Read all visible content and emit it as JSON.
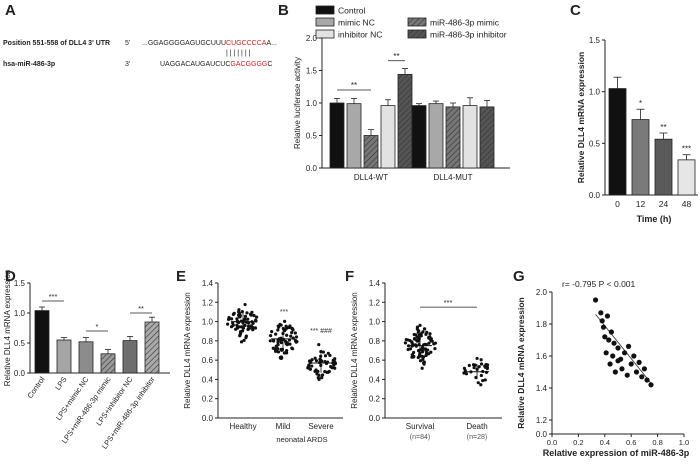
{
  "panels": {
    "A": {
      "letter": "A",
      "row1_label": "Position 551-558 of DLL4 3' UTR",
      "row1_end": "5'",
      "row1_seq_black": "...GGAGGGGAGUGCUUU",
      "row1_seq_red": "CUGCCCCA",
      "row1_seq_tail": "A...",
      "pairing": "| | | | | | |",
      "row2_label": "hsa-miR-486-3p",
      "row2_end": "3'",
      "row2_seq_black": "UAGGACAUGAUCUC",
      "row2_seq_red": "GACGGGG",
      "row2_seq_tail": "C"
    },
    "B": {
      "letter": "B"
    },
    "C": {
      "letter": "C"
    },
    "D": {
      "letter": "D"
    },
    "E": {
      "letter": "E"
    },
    "F": {
      "letter": "F"
    },
    "G": {
      "letter": "G"
    }
  },
  "chart_data": [
    {
      "id": "B",
      "type": "bar",
      "ylabel": "Relative luciferase activity",
      "ylim": [
        0,
        2.0
      ],
      "yticks": [
        "0.0",
        "0.5",
        "1.0",
        "1.5",
        "2.0"
      ],
      "groups": [
        "DLL4-WT",
        "DLL4-MUT"
      ],
      "legend": [
        "Control",
        "mimic NC",
        "inhibitor NC",
        "miR-486-3p mimic",
        "miR-486-3p inhibitor"
      ],
      "series": [
        {
          "name": "Control",
          "values": [
            1.0,
            0.96
          ],
          "errors": [
            0.07,
            0.03
          ]
        },
        {
          "name": "mimic NC",
          "values": [
            0.99,
            0.99
          ],
          "errors": [
            0.08,
            0.04
          ]
        },
        {
          "name": "miR-486-3p mimic",
          "values": [
            0.5,
            0.94
          ],
          "errors": [
            0.09,
            0.06
          ]
        },
        {
          "name": "inhibitor NC",
          "values": [
            0.96,
            0.96
          ],
          "errors": [
            0.09,
            0.12
          ]
        },
        {
          "name": "miR-486-3p inhibitor",
          "values": [
            1.44,
            0.94
          ],
          "errors": [
            0.09,
            0.1
          ]
        }
      ],
      "annotations": [
        "**",
        "**"
      ]
    },
    {
      "id": "C",
      "type": "bar",
      "xlabel": "Time (h)",
      "ylabel": "Relative DLL4 mRNA expression",
      "ylim": [
        0,
        1.5
      ],
      "yticks": [
        "0.0",
        "0.5",
        "1.0",
        "1.5"
      ],
      "categories": [
        "0",
        "12",
        "24",
        "48"
      ],
      "values": [
        1.03,
        0.73,
        0.54,
        0.34
      ],
      "errors": [
        0.11,
        0.1,
        0.06,
        0.05
      ],
      "stars": [
        "",
        "*",
        "**",
        "***"
      ]
    },
    {
      "id": "D",
      "type": "bar",
      "ylabel": "Relative DLL4 mRNA expression",
      "ylim": [
        0,
        1.5
      ],
      "yticks": [
        "0.0",
        "0.5",
        "1.0",
        "1.5"
      ],
      "categories": [
        "Control",
        "LPS",
        "LPS+mimic NC",
        "LPS+miR-486-3p mimic",
        "LPS+inhibitor NC",
        "LPS+miR-486-3p inhibitor"
      ],
      "values": [
        1.04,
        0.55,
        0.52,
        0.32,
        0.54,
        0.85
      ],
      "errors": [
        0.06,
        0.04,
        0.07,
        0.07,
        0.07,
        0.08
      ],
      "annotations": [
        "***",
        "*",
        "**"
      ]
    },
    {
      "id": "E",
      "type": "scatter",
      "ylabel": "Relative DLL4 mRNA expression",
      "ylim": [
        0,
        1.4
      ],
      "yticks": [
        "0.0",
        "0.2",
        "0.4",
        "0.6",
        "0.8",
        "1.0",
        "1.2",
        "1.4"
      ],
      "categories": [
        "Healthy",
        "Mild",
        "Severe"
      ],
      "group_label": "neonatal ARDS",
      "means": [
        1.0,
        0.82,
        0.57
      ],
      "sd": [
        0.1,
        0.11,
        0.1
      ],
      "annotations": [
        "",
        "***",
        "*** ###"
      ]
    },
    {
      "id": "F",
      "type": "scatter",
      "ylabel": "Relative DLL4 mRNA expression",
      "ylim": [
        0,
        1.4
      ],
      "yticks": [
        "0.0",
        "0.2",
        "0.4",
        "0.6",
        "0.8",
        "1.0",
        "1.2",
        "1.4"
      ],
      "categories": [
        "Survival",
        "Death"
      ],
      "counts": [
        "(n=84)",
        "(n=28)"
      ],
      "means": [
        0.75,
        0.48
      ],
      "sd": [
        0.13,
        0.08
      ],
      "annotations": [
        "***"
      ]
    },
    {
      "id": "G",
      "type": "scatter",
      "xlabel": "Relative expression of miR-486-3p",
      "ylabel": "Relative DLL4 mRNA expression",
      "xlim": [
        0,
        1.0
      ],
      "ylim": [
        0,
        2.0
      ],
      "xticks": [
        "0.0",
        "0.2",
        "0.4",
        "0.6",
        "0.8",
        "1.0"
      ],
      "yticks": [
        "0.0",
        "1.2",
        "1.4",
        "1.6",
        "1.8",
        "2.0"
      ],
      "stat": "r= -0.795 P < 0.001",
      "points": [
        [
          0.33,
          1.95
        ],
        [
          0.37,
          1.87
        ],
        [
          0.38,
          1.82
        ],
        [
          0.39,
          1.78
        ],
        [
          0.42,
          1.85
        ],
        [
          0.4,
          1.72
        ],
        [
          0.43,
          1.7
        ],
        [
          0.41,
          1.62
        ],
        [
          0.45,
          1.75
        ],
        [
          0.47,
          1.68
        ],
        [
          0.44,
          1.55
        ],
        [
          0.46,
          1.6
        ],
        [
          0.5,
          1.65
        ],
        [
          0.48,
          1.5
        ],
        [
          0.52,
          1.58
        ],
        [
          0.55,
          1.62
        ],
        [
          0.53,
          1.52
        ],
        [
          0.58,
          1.66
        ],
        [
          0.6,
          1.55
        ],
        [
          0.57,
          1.48
        ],
        [
          0.62,
          1.6
        ],
        [
          0.64,
          1.5
        ],
        [
          0.66,
          1.56
        ],
        [
          0.68,
          1.47
        ],
        [
          0.7,
          1.52
        ],
        [
          0.72,
          1.45
        ],
        [
          0.75,
          1.42
        ],
        [
          0.5,
          1.57
        ]
      ],
      "fit": [
        [
          0.33,
          1.86
        ],
        [
          0.76,
          1.42
        ]
      ]
    }
  ]
}
